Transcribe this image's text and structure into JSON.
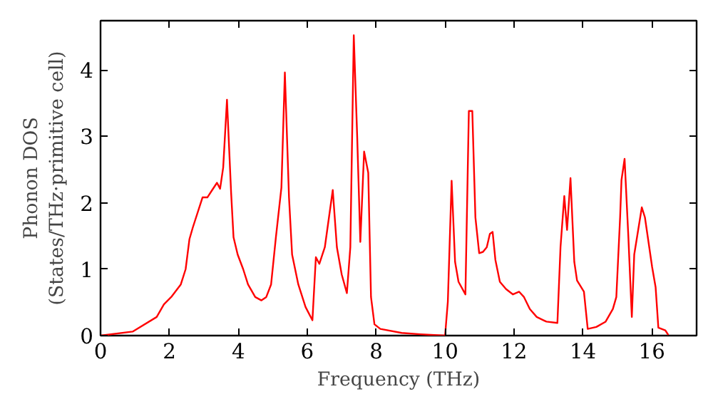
{
  "chart_data": {
    "type": "line",
    "xlabel": "Frequency (THz)",
    "ylabel": "Phonon DOS\n(States/THz·primitive cell)",
    "xlim": [
      0,
      17.3
    ],
    "ylim": [
      0,
      4.74
    ],
    "xticks": [
      0,
      2,
      4,
      6,
      8,
      10,
      12,
      14,
      16
    ],
    "yticks": [
      0,
      1,
      2,
      3,
      4
    ],
    "series": [
      {
        "color": "#ff0000",
        "x": [
          0,
          0.93,
          1.63,
          1.84,
          2.05,
          2.33,
          2.47,
          2.58,
          2.68,
          2.96,
          3.1,
          3.24,
          3.38,
          3.47,
          3.56,
          3.67,
          3.79,
          3.86,
          3.98,
          4.14,
          4.28,
          4.49,
          4.67,
          4.81,
          4.95,
          5.09,
          5.25,
          5.35,
          5.47,
          5.56,
          5.74,
          5.95,
          6.15,
          6.25,
          6.35,
          6.51,
          6.74,
          6.86,
          7.0,
          7.15,
          7.25,
          7.35,
          7.45,
          7.54,
          7.65,
          7.77,
          7.85,
          7.95,
          8.12,
          8.74,
          9.28,
          10.0,
          10.08,
          10.19,
          10.29,
          10.39,
          10.59,
          10.69,
          10.79,
          10.88,
          10.99,
          11.1,
          11.21,
          11.3,
          11.38,
          11.46,
          11.59,
          11.77,
          11.97,
          12.15,
          12.29,
          12.46,
          12.66,
          12.94,
          13.26,
          13.35,
          13.46,
          13.54,
          13.64,
          13.75,
          13.83,
          14.03,
          14.14,
          14.39,
          14.66,
          14.87,
          14.97,
          15.08,
          15.12,
          15.21,
          15.32,
          15.42,
          15.49,
          15.71,
          15.8,
          16.01,
          16.11,
          16.19,
          16.39,
          16.48
        ],
        "values": [
          0,
          0.06,
          0.28,
          0.47,
          0.58,
          0.77,
          1.0,
          1.45,
          1.63,
          2.08,
          2.08,
          2.19,
          2.3,
          2.21,
          2.53,
          3.55,
          2.15,
          1.48,
          1.22,
          1.0,
          0.77,
          0.58,
          0.53,
          0.58,
          0.77,
          1.48,
          2.23,
          3.96,
          2.08,
          1.22,
          0.77,
          0.43,
          0.23,
          1.18,
          1.08,
          1.33,
          2.19,
          1.33,
          0.92,
          0.64,
          1.33,
          4.52,
          2.98,
          1.41,
          2.77,
          2.45,
          0.58,
          0.17,
          0.1,
          0.04,
          0.02,
          0.0,
          0.51,
          2.33,
          1.11,
          0.81,
          0.62,
          3.38,
          3.38,
          1.78,
          1.24,
          1.26,
          1.33,
          1.53,
          1.56,
          1.14,
          0.81,
          0.7,
          0.62,
          0.66,
          0.58,
          0.4,
          0.28,
          0.21,
          0.19,
          1.33,
          2.1,
          1.59,
          2.37,
          1.11,
          0.83,
          0.66,
          0.1,
          0.13,
          0.21,
          0.4,
          0.58,
          1.78,
          2.34,
          2.66,
          1.48,
          0.28,
          1.22,
          1.93,
          1.78,
          1.03,
          0.73,
          0.12,
          0.08,
          0.01
        ]
      }
    ],
    "marker": "none",
    "line_style": "solid"
  }
}
